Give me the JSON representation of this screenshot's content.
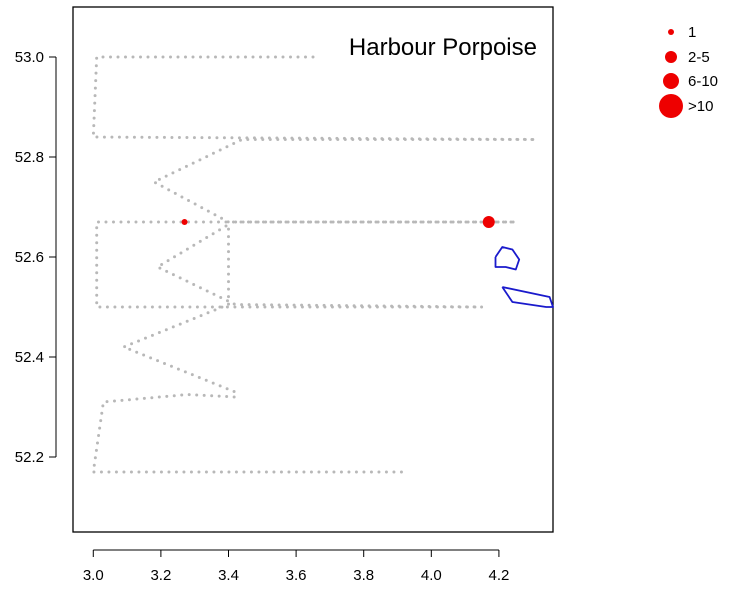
{
  "chart_data": {
    "type": "scatter",
    "title": "Harbour Porpoise",
    "xlim": [
      2.94,
      4.36
    ],
    "ylim": [
      52.05,
      53.1
    ],
    "xticks": [
      "3.0",
      "3.2",
      "3.4",
      "3.6",
      "3.8",
      "4.0",
      "4.2"
    ],
    "yticks": [
      "52.2",
      "52.4",
      "52.6",
      "52.8",
      "53.0"
    ],
    "grid": false,
    "legend": {
      "position": "top-right",
      "entries": [
        {
          "label": "1",
          "size": "small"
        },
        {
          "label": "2-5",
          "size": "medium"
        },
        {
          "label": "6-10",
          "size": "large"
        },
        {
          "label": ">10",
          "size": "xlarge"
        }
      ]
    },
    "colors": {
      "sighting": "#ee0000",
      "transect": "#b8b8b8",
      "contour": "#1a1acc"
    },
    "transect_path": [
      [
        3.65,
        53.0
      ],
      [
        3.01,
        53.0
      ],
      [
        3.0,
        52.84
      ],
      [
        4.31,
        52.835
      ],
      [
        3.44,
        52.835
      ],
      [
        3.18,
        52.75
      ],
      [
        3.4,
        52.67
      ],
      [
        4.25,
        52.67
      ],
      [
        3.01,
        52.67
      ],
      [
        3.01,
        52.5
      ],
      [
        4.15,
        52.5
      ],
      [
        3.42,
        52.505
      ],
      [
        3.19,
        52.58
      ],
      [
        3.4,
        52.665
      ],
      [
        3.4,
        52.505
      ],
      [
        3.09,
        52.42
      ],
      [
        3.42,
        52.33
      ],
      [
        3.42,
        52.32
      ],
      [
        3.28,
        52.325
      ],
      [
        3.03,
        52.31
      ],
      [
        3.0,
        52.17
      ],
      [
        3.93,
        52.17
      ]
    ],
    "sightings": [
      {
        "x": 3.27,
        "y": 52.67,
        "group": "1"
      },
      {
        "x": 4.17,
        "y": 52.67,
        "group": "2-5"
      }
    ],
    "contours": [
      [
        [
          4.19,
          52.6
        ],
        [
          4.21,
          52.62
        ],
        [
          4.24,
          52.615
        ],
        [
          4.26,
          52.595
        ],
        [
          4.25,
          52.575
        ],
        [
          4.22,
          52.58
        ],
        [
          4.19,
          52.58
        ],
        [
          4.19,
          52.6
        ]
      ],
      [
        [
          4.21,
          52.54
        ],
        [
          4.35,
          52.52
        ],
        [
          4.36,
          52.5
        ],
        [
          4.34,
          52.5
        ],
        [
          4.24,
          52.51
        ],
        [
          4.21,
          52.54
        ]
      ]
    ]
  }
}
